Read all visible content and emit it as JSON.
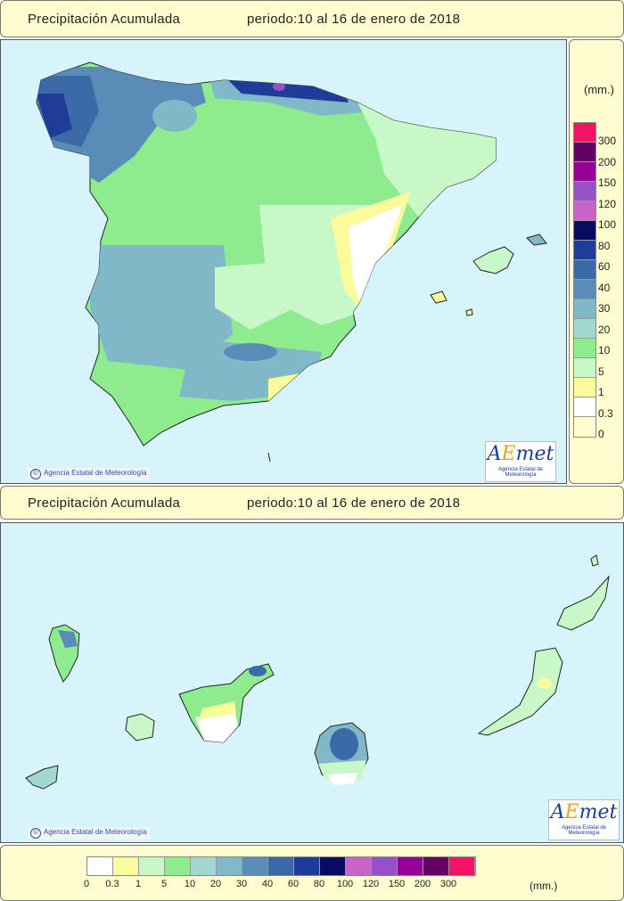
{
  "header_top": {
    "title": "Precipitación Acumulada",
    "period": "periodo:10 al 16 de enero de 2018"
  },
  "header_canarias": {
    "title": "Precipitación Acumulada",
    "period": "periodo:10 al 16 de enero de 2018"
  },
  "credit": "Agencia Estatal de Meteorología",
  "logo": {
    "prefix": "A",
    "accent": "E",
    "suffix": "met",
    "subtitle": "Agencia Estatal de Meteorología"
  },
  "legend": {
    "unit": "(mm.)",
    "thresholds": [
      "0",
      "0.3",
      "1",
      "5",
      "10",
      "20",
      "30",
      "40",
      "60",
      "80",
      "100",
      "120",
      "150",
      "200",
      "300"
    ],
    "colors": [
      "#ffffff",
      "#fbfb9b",
      "#c8f8c8",
      "#8eec8e",
      "#a2d6d0",
      "#80b8c8",
      "#5a8cb8",
      "#3c6aa8",
      "#1e3c98",
      "#0a0a60",
      "#c864c8",
      "#9650c8",
      "#960096",
      "#640064",
      "#f01464"
    ]
  }
}
